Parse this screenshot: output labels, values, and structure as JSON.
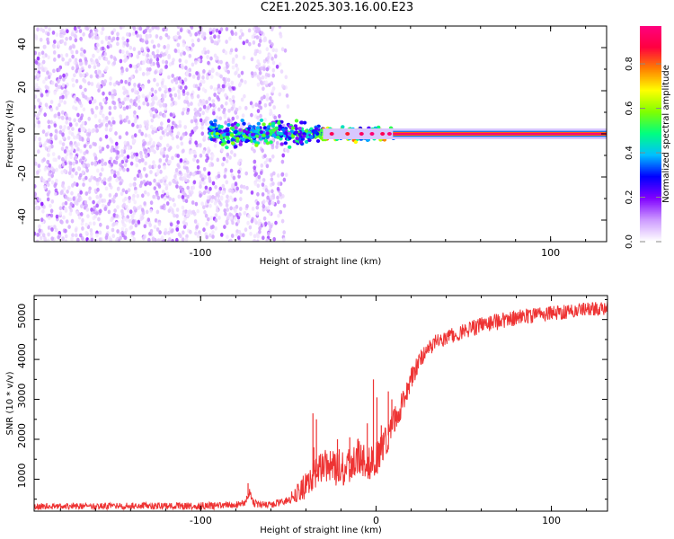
{
  "title": "C2E1.2025.303.16.00.E23",
  "chart_data": [
    {
      "type": "heatmap",
      "xlabel": "Height of straight line (km)",
      "ylabel": "Frequency (Hz)",
      "xlim": [
        -195,
        132
      ],
      "ylim": [
        -50,
        50
      ],
      "x_ticks": [
        -100,
        100
      ],
      "y_ticks": [
        -40,
        -20,
        0,
        20,
        40
      ],
      "colorbar": {
        "label": "Normalized spectral amplitude",
        "range": [
          0,
          0.97
        ],
        "ticks": [
          0.0,
          0.2,
          0.4,
          0.6,
          0.8
        ],
        "tick_labels": [
          "0.0",
          "0.2",
          "0.4",
          "0.6",
          "0.8"
        ],
        "colormap": [
          "#ffffff",
          "#cc99ff",
          "#8000ff",
          "#0000ff",
          "#00c0ff",
          "#00ff80",
          "#80ff00",
          "#ffff00",
          "#ff8000",
          "#ff0040",
          "#ff0080"
        ]
      },
      "regions": [
        {
          "name": "broadband noise",
          "x_from": -195,
          "x_to": -50,
          "freq_from": -50,
          "freq_to": 50,
          "amplitude": 0.1
        },
        {
          "name": "transition blobs",
          "x_from": -95,
          "x_to": 12,
          "freq_center": 0,
          "amplitude_range": [
            0.2,
            0.9
          ]
        },
        {
          "name": "carrier line",
          "x_from": 10,
          "x_to": 132,
          "freq_center": 0,
          "amplitude": 0.97
        }
      ]
    },
    {
      "type": "line",
      "xlabel": "Height of straight line (km)",
      "ylabel": "SNR (10 * v/v)",
      "xlim": [
        -195,
        132
      ],
      "ylim": [
        200,
        5600
      ],
      "x_ticks": [
        -100,
        0,
        100
      ],
      "y_ticks": [
        1000,
        2000,
        3000,
        4000,
        5000
      ],
      "grid": false,
      "series": [
        {
          "color": "#ee3333",
          "x": [
            -195,
            -180,
            -160,
            -140,
            -120,
            -100,
            -90,
            -80,
            -75,
            -72,
            -70,
            -65,
            -60,
            -55,
            -50,
            -45,
            -40,
            -35,
            -30,
            -25,
            -20,
            -15,
            -10,
            -5,
            0,
            5,
            10,
            15,
            20,
            25,
            30,
            35,
            40,
            50,
            60,
            70,
            80,
            90,
            100,
            110,
            120,
            132
          ],
          "y": [
            320,
            320,
            320,
            330,
            320,
            330,
            340,
            360,
            420,
            700,
            400,
            360,
            360,
            420,
            500,
            650,
            850,
            1150,
            1350,
            1300,
            1200,
            1400,
            1600,
            1300,
            1500,
            1900,
            2400,
            2900,
            3500,
            4000,
            4300,
            4450,
            4550,
            4700,
            4850,
            4950,
            5050,
            5100,
            5150,
            5200,
            5250,
            5300
          ]
        }
      ],
      "noise_amplitude": {
        "x": [
          -195,
          -50,
          -40,
          -10,
          10,
          25,
          132
        ],
        "amp": [
          80,
          100,
          350,
          500,
          350,
          220,
          180
        ]
      },
      "spikes": [
        {
          "x": -73,
          "y": 900
        },
        {
          "x": -36,
          "y": 2650
        },
        {
          "x": -35.5,
          "y": 1800
        },
        {
          "x": -34,
          "y": 2500
        },
        {
          "x": -22,
          "y": 2000
        },
        {
          "x": -21,
          "y": 1750
        },
        {
          "x": -15,
          "y": 2050
        },
        {
          "x": -5,
          "y": 2400
        },
        {
          "x": -1.5,
          "y": 3500
        },
        {
          "x": 0.5,
          "y": 3050
        },
        {
          "x": 3,
          "y": 2350
        },
        {
          "x": 7,
          "y": 3200
        },
        {
          "x": 9,
          "y": 3000
        }
      ]
    }
  ]
}
